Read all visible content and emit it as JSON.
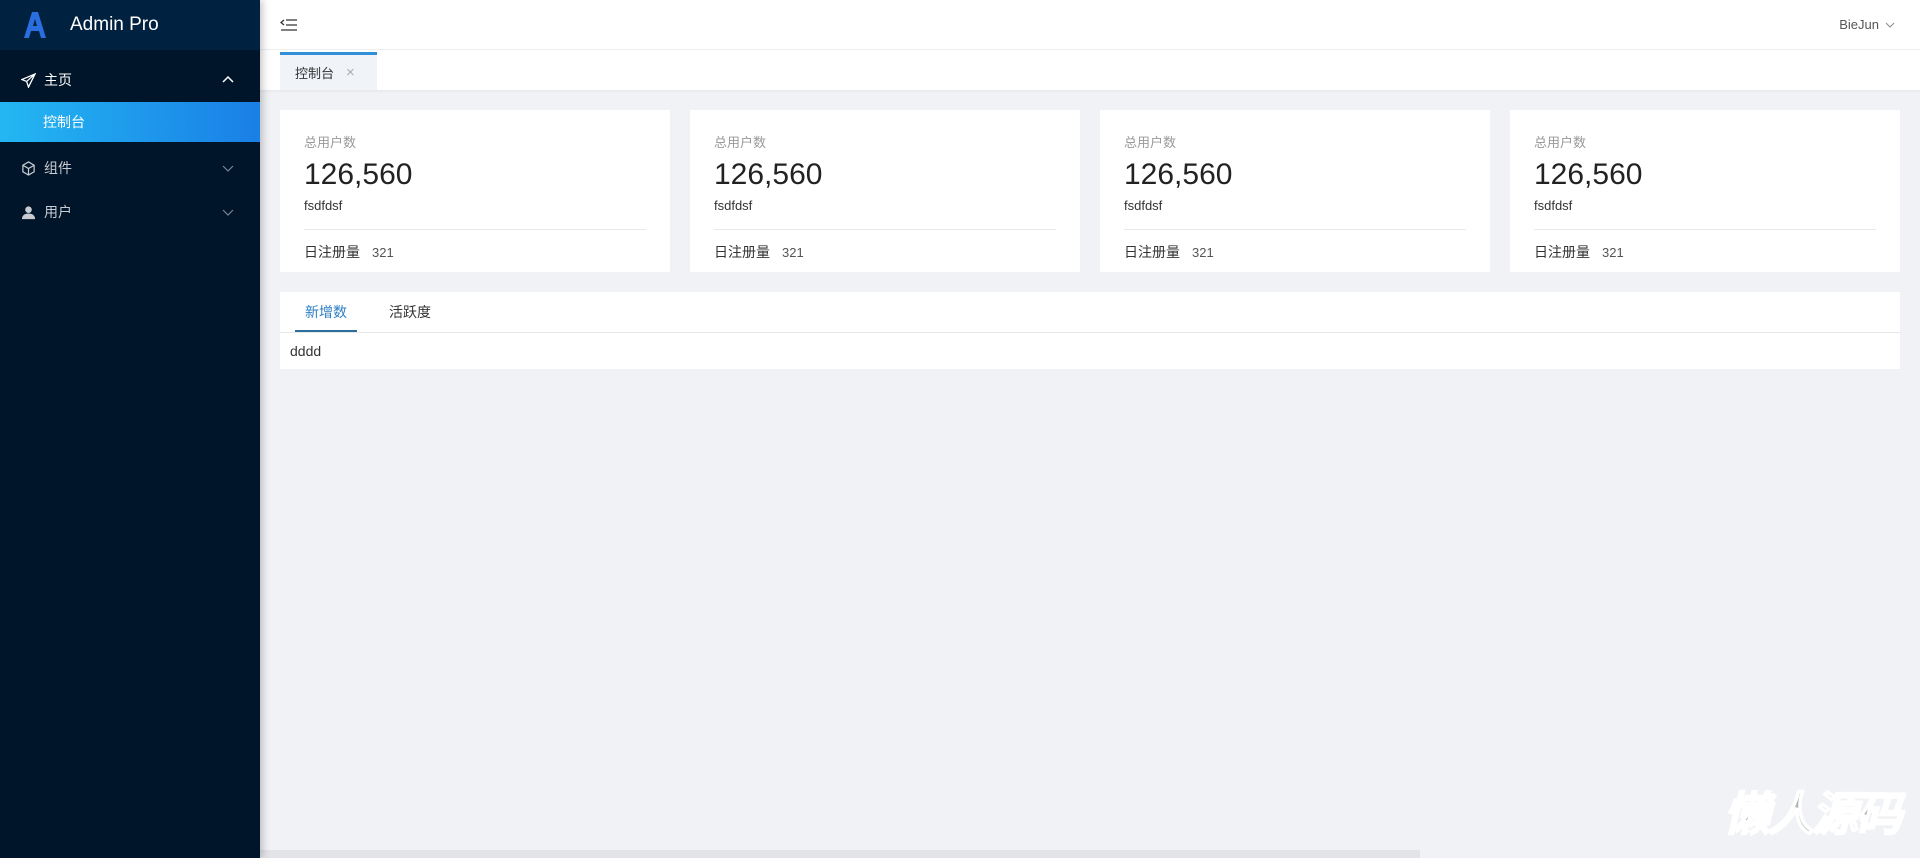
{
  "app": {
    "title": "Admin Pro",
    "accent": "#1a7fe6"
  },
  "sidebar": {
    "items": [
      {
        "label": "主页",
        "icon": "paper-plane-icon",
        "expanded": true,
        "children": [
          {
            "label": "控制台",
            "active": true
          }
        ]
      },
      {
        "label": "组件",
        "icon": "cube-icon",
        "expanded": false
      },
      {
        "label": "用户",
        "icon": "user-icon",
        "expanded": false
      }
    ]
  },
  "header": {
    "user": "BieJun"
  },
  "tabs": [
    {
      "label": "控制台",
      "close": "×"
    }
  ],
  "cards": [
    {
      "title": "总用户数",
      "value": "126,560",
      "sub": "fsdfdsf",
      "foot_label": "日注册量",
      "foot_value": "321"
    },
    {
      "title": "总用户数",
      "value": "126,560",
      "sub": "fsdfdsf",
      "foot_label": "日注册量",
      "foot_value": "321"
    },
    {
      "title": "总用户数",
      "value": "126,560",
      "sub": "fsdfdsf",
      "foot_label": "日注册量",
      "foot_value": "321"
    },
    {
      "title": "总用户数",
      "value": "126,560",
      "sub": "fsdfdsf",
      "foot_label": "日注册量",
      "foot_value": "321"
    }
  ],
  "panel": {
    "tabs": [
      "新增数",
      "活跃度"
    ],
    "active": 0,
    "content": "dddd"
  },
  "watermark": "懒人源码"
}
